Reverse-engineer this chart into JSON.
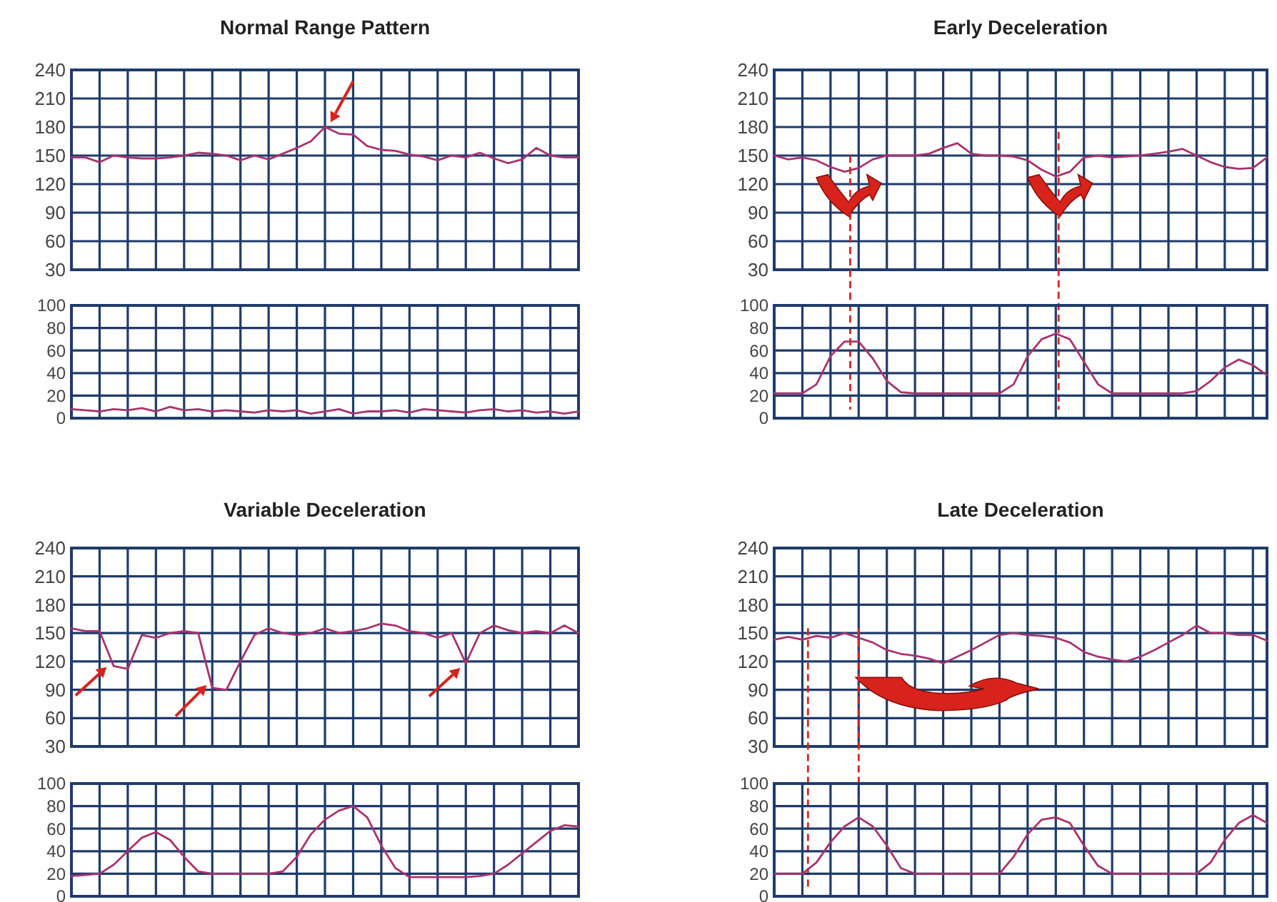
{
  "chart_data": [
    {
      "type": "line",
      "title": "Normal Range Pattern",
      "categories": [
        null,
        null,
        null,
        null,
        null,
        null,
        null,
        null,
        null,
        null,
        null,
        null,
        null,
        null,
        null,
        null,
        null,
        null,
        null,
        null,
        null,
        null,
        null,
        null,
        null,
        null,
        null,
        null,
        null,
        null,
        null,
        null,
        null,
        null,
        null,
        null,
        null
      ],
      "series": [
        {
          "color": "#a8336e",
          "values": [
            148,
            148,
            143,
            150,
            148,
            147,
            147,
            148,
            150,
            153,
            152,
            150,
            145,
            150,
            146,
            152,
            158,
            165,
            180,
            173,
            172,
            160,
            156,
            155,
            151,
            149,
            145,
            150,
            148,
            153,
            147,
            142,
            146,
            158,
            150,
            148,
            148
          ]
        }
      ],
      "ylim": [
        30,
        240
      ],
      "yticks": [
        30,
        60,
        90,
        120,
        150,
        180,
        210,
        240
      ],
      "grid": true,
      "tick_labels": "y"
    },
    {
      "type": "line",
      "categories": [
        null,
        null,
        null,
        null,
        null,
        null,
        null,
        null,
        null,
        null,
        null,
        null,
        null,
        null,
        null,
        null,
        null,
        null,
        null,
        null,
        null,
        null,
        null,
        null,
        null,
        null,
        null,
        null,
        null,
        null,
        null,
        null,
        null,
        null,
        null,
        null,
        null
      ],
      "series": [
        {
          "color": "#a8336e",
          "values": [
            8,
            7,
            6,
            8,
            7,
            9,
            6,
            10,
            7,
            8,
            6,
            7,
            6,
            5,
            7,
            6,
            7,
            4,
            6,
            8,
            4,
            6,
            6,
            7,
            5,
            8,
            7,
            6,
            5,
            7,
            8,
            6,
            7,
            5,
            6,
            4,
            6
          ]
        }
      ],
      "ylim": [
        0,
        100
      ],
      "yticks": [
        0,
        20,
        40,
        60,
        80,
        100
      ],
      "grid": true,
      "tick_labels": "y"
    },
    {
      "type": "line",
      "title": "Early Deceleration",
      "categories": [
        null,
        null,
        null,
        null,
        null,
        null,
        null,
        null,
        null,
        null,
        null,
        null,
        null,
        null,
        null,
        null,
        null,
        null,
        null,
        null,
        null,
        null,
        null,
        null,
        null,
        null,
        null,
        null,
        null,
        null,
        null,
        null,
        null,
        null,
        null,
        null
      ],
      "series": [
        {
          "color": "#a8336e",
          "values": [
            150,
            146,
            148,
            145,
            138,
            133,
            137,
            146,
            150,
            150,
            150,
            152,
            158,
            163,
            152,
            150,
            150,
            149,
            145,
            135,
            128,
            133,
            148,
            150,
            148,
            149,
            150,
            152,
            154,
            157,
            150,
            143,
            138,
            136,
            137,
            148
          ]
        }
      ],
      "ylim": [
        30,
        240
      ],
      "yticks": [
        30,
        60,
        90,
        120,
        150,
        180,
        210,
        240
      ],
      "grid": true,
      "tick_labels": "y"
    },
    {
      "type": "line",
      "categories": [
        null,
        null,
        null,
        null,
        null,
        null,
        null,
        null,
        null,
        null,
        null,
        null,
        null,
        null,
        null,
        null,
        null,
        null,
        null,
        null,
        null,
        null,
        null,
        null,
        null,
        null,
        null,
        null,
        null,
        null,
        null,
        null,
        null,
        null,
        null,
        null
      ],
      "series": [
        {
          "color": "#a8336e",
          "values": [
            22,
            22,
            22,
            30,
            55,
            68,
            68,
            53,
            33,
            23,
            22,
            22,
            22,
            22,
            22,
            22,
            22,
            30,
            55,
            70,
            75,
            70,
            50,
            30,
            22,
            22,
            22,
            22,
            22,
            22,
            24,
            33,
            45,
            52,
            47,
            38
          ]
        }
      ],
      "ylim": [
        0,
        100
      ],
      "yticks": [
        0,
        20,
        40,
        60,
        80,
        100
      ],
      "grid": true,
      "tick_labels": "y"
    },
    {
      "type": "line",
      "title": "Variable Deceleration",
      "categories": [
        null,
        null,
        null,
        null,
        null,
        null,
        null,
        null,
        null,
        null,
        null,
        null,
        null,
        null,
        null,
        null,
        null,
        null,
        null,
        null,
        null,
        null,
        null,
        null,
        null,
        null,
        null,
        null,
        null,
        null,
        null,
        null,
        null,
        null,
        null,
        null,
        null
      ],
      "series": [
        {
          "color": "#a8336e",
          "values": [
            155,
            152,
            152,
            115,
            112,
            148,
            145,
            150,
            152,
            150,
            92,
            90,
            120,
            148,
            155,
            150,
            148,
            150,
            155,
            150,
            152,
            155,
            160,
            158,
            152,
            150,
            145,
            150,
            118,
            150,
            158,
            153,
            150,
            152,
            150,
            158,
            150
          ]
        }
      ],
      "ylim": [
        30,
        240
      ],
      "yticks": [
        30,
        60,
        90,
        120,
        150,
        180,
        210,
        240
      ],
      "grid": true,
      "tick_labels": "y"
    },
    {
      "type": "line",
      "categories": [
        null,
        null,
        null,
        null,
        null,
        null,
        null,
        null,
        null,
        null,
        null,
        null,
        null,
        null,
        null,
        null,
        null,
        null,
        null,
        null,
        null,
        null,
        null,
        null,
        null,
        null,
        null,
        null,
        null,
        null,
        null,
        null,
        null,
        null,
        null,
        null,
        null
      ],
      "series": [
        {
          "color": "#a8336e",
          "values": [
            18,
            19,
            20,
            28,
            40,
            52,
            57,
            50,
            35,
            22,
            20,
            20,
            20,
            20,
            20,
            22,
            35,
            55,
            68,
            76,
            80,
            70,
            45,
            25,
            17,
            17,
            17,
            17,
            17,
            18,
            20,
            28,
            38,
            48,
            58,
            63,
            62
          ]
        }
      ],
      "ylim": [
        0,
        100
      ],
      "yticks": [
        0,
        20,
        40,
        60,
        80,
        100
      ],
      "grid": true,
      "tick_labels": "y"
    },
    {
      "type": "line",
      "title": "Late Deceleration",
      "categories": [
        null,
        null,
        null,
        null,
        null,
        null,
        null,
        null,
        null,
        null,
        null,
        null,
        null,
        null,
        null,
        null,
        null,
        null,
        null,
        null,
        null,
        null,
        null,
        null,
        null,
        null,
        null,
        null,
        null,
        null,
        null,
        null,
        null,
        null,
        null,
        null
      ],
      "series": [
        {
          "color": "#a8336e",
          "values": [
            143,
            146,
            143,
            147,
            145,
            150,
            145,
            140,
            132,
            128,
            126,
            123,
            118,
            125,
            132,
            140,
            148,
            150,
            148,
            147,
            145,
            140,
            130,
            125,
            122,
            120,
            125,
            132,
            140,
            148,
            158,
            150,
            150,
            148,
            148,
            142
          ]
        }
      ],
      "ylim": [
        30,
        240
      ],
      "yticks": [
        30,
        60,
        90,
        120,
        150,
        180,
        210,
        240
      ],
      "grid": true,
      "tick_labels": "y"
    },
    {
      "type": "line",
      "categories": [
        null,
        null,
        null,
        null,
        null,
        null,
        null,
        null,
        null,
        null,
        null,
        null,
        null,
        null,
        null,
        null,
        null,
        null,
        null,
        null,
        null,
        null,
        null,
        null,
        null,
        null,
        null,
        null,
        null,
        null,
        null,
        null,
        null,
        null,
        null,
        null
      ],
      "series": [
        {
          "color": "#a8336e",
          "values": [
            20,
            20,
            20,
            30,
            48,
            62,
            70,
            62,
            45,
            25,
            20,
            20,
            20,
            20,
            20,
            20,
            20,
            35,
            55,
            68,
            70,
            65,
            45,
            27,
            20,
            20,
            20,
            20,
            20,
            20,
            20,
            30,
            50,
            65,
            72,
            65
          ]
        }
      ],
      "ylim": [
        0,
        100
      ],
      "yticks": [
        0,
        20,
        40,
        60,
        80,
        100
      ],
      "grid": true,
      "tick_labels": "y"
    }
  ]
}
